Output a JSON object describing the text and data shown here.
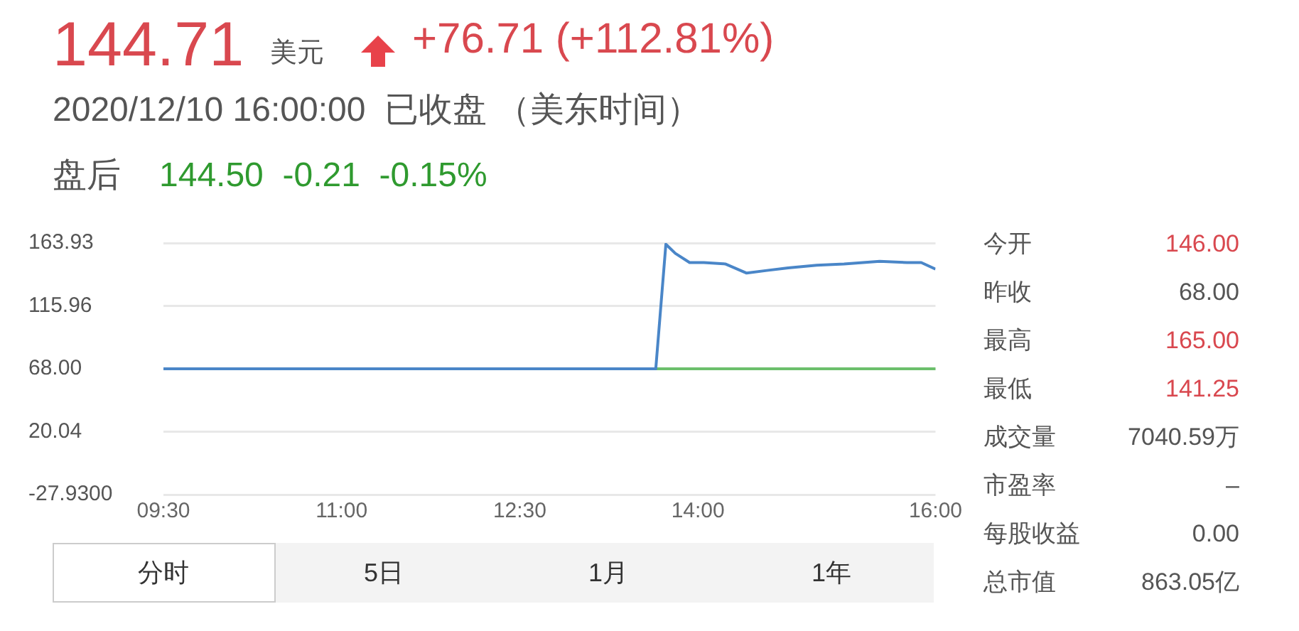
{
  "chart_data": {
    "type": "line",
    "x": [
      9.5,
      13.645,
      13.73,
      13.81,
      13.93,
      14.05,
      14.23,
      14.41,
      14.58,
      14.76,
      15.0,
      15.23,
      15.53,
      15.76,
      15.88,
      16.0
    ],
    "series": [
      {
        "color": "#4a86c8",
        "values": [
          68,
          68,
          163,
          156,
          149,
          149,
          148,
          141,
          143,
          145,
          147,
          148,
          150,
          149,
          149,
          144
        ]
      }
    ],
    "xlim": [
      9.5,
      16
    ],
    "xticks": [
      {
        "value": 9.5,
        "label": "09:30"
      },
      {
        "value": 11,
        "label": "11:00"
      },
      {
        "value": 12.5,
        "label": "12:30"
      },
      {
        "value": 14,
        "label": "14:00"
      },
      {
        "value": 16,
        "label": "16:00"
      }
    ],
    "ylim": [
      -27.93,
      163.93
    ],
    "yticks": [
      {
        "value": -27.93,
        "label": "-27.9300"
      },
      {
        "value": 20.04,
        "label": "20.04"
      },
      {
        "value": 68,
        "label": "68.00"
      },
      {
        "value": 115.96,
        "label": "115.96"
      },
      {
        "value": 163.93,
        "label": "163.93"
      }
    ],
    "ref_lines": [
      {
        "axis": "y",
        "value": 68,
        "color": "#6cbf6c"
      }
    ],
    "grid": "y",
    "legend": false,
    "marker": "none",
    "line_style": "solid",
    "annotations": [
      "144.71",
      "美元",
      "+76.71 (+112.81%)",
      "2020/12/10 16:00:00  已收盘 （美东时间）",
      "盘后",
      "144.50  -0.21  -0.15%",
      "今开",
      "146.00",
      "昨收",
      "68.00",
      "最高",
      "165.00",
      "最低",
      "141.25",
      "成交量",
      "7040.59万",
      "市盈率",
      "–",
      "每股收益",
      "0.00",
      "总市值",
      "863.05亿",
      "分时",
      "5日",
      "1月",
      "1年"
    ]
  }
}
